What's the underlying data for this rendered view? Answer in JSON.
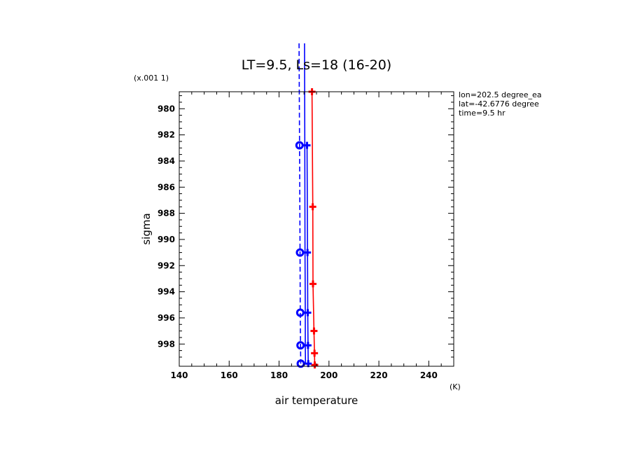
{
  "chart_data": {
    "type": "line",
    "title": "LT=9.5, Ls=18 (16-20)",
    "xlabel": "air temperature",
    "xunits": "(K)",
    "ylabel": "sigma",
    "yscale_note": "(x.001 1)",
    "xlim": [
      140,
      250
    ],
    "ylim": [
      999.7,
      978.7
    ],
    "x_ticks": [
      140,
      160,
      180,
      200,
      220,
      240
    ],
    "y_ticks": [
      980,
      982,
      984,
      986,
      988,
      990,
      992,
      994,
      996,
      998
    ],
    "x_tick_labels": [
      "140",
      "160",
      "180",
      "200",
      "220",
      "240"
    ],
    "y_tick_labels": [
      "980",
      "982",
      "984",
      "986",
      "988",
      "990",
      "992",
      "994",
      "996",
      "998"
    ],
    "annotations": [
      "lon=202.5 degree_ea",
      "lat=-42.6776 degree",
      "time=9.5 hr"
    ],
    "grid": false,
    "series": [
      {
        "color": "#ff0000",
        "style": "solid",
        "marker": "plus",
        "points": [
          [
            193.2,
            978.7
          ],
          [
            193.5,
            987.5
          ],
          [
            193.6,
            993.4
          ],
          [
            194.0,
            997.0
          ],
          [
            194.2,
            998.7
          ],
          [
            194.3,
            999.6
          ]
        ]
      },
      {
        "color": "#0000ff",
        "style": "solid",
        "marker": "plus",
        "points": [
          [
            191.2,
            982.8
          ],
          [
            191.4,
            991.0
          ],
          [
            191.5,
            995.6
          ],
          [
            191.6,
            998.1
          ],
          [
            191.7,
            999.5
          ]
        ]
      },
      {
        "color": "#0000ff",
        "style": "solid",
        "marker": "none",
        "points": [
          [
            190.2,
            975.0
          ],
          [
            190.3,
            982.8
          ],
          [
            190.4,
            991.0
          ],
          [
            190.5,
            995.6
          ],
          [
            190.5,
            998.1
          ],
          [
            190.6,
            999.5
          ]
        ]
      },
      {
        "color": "#0000ff",
        "style": "dashed",
        "marker": "circle",
        "points": [
          [
            188.0,
            975.0
          ],
          [
            188.2,
            982.8
          ],
          [
            188.4,
            991.0
          ],
          [
            188.5,
            995.6
          ],
          [
            188.6,
            998.1
          ],
          [
            188.7,
            999.5
          ]
        ]
      }
    ]
  }
}
